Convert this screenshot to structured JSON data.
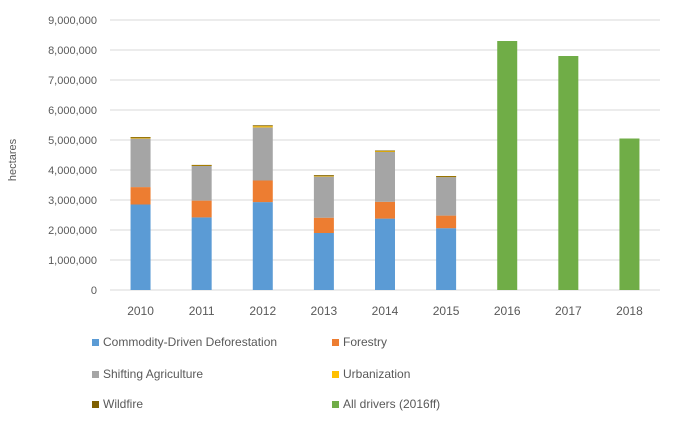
{
  "chart_data": {
    "type": "bar",
    "stacked": true,
    "title": "",
    "xlabel": "",
    "ylabel": "hectares",
    "ylim": [
      0,
      9000000
    ],
    "yticks": [
      "0",
      "1,000,000",
      "2,000,000",
      "3,000,000",
      "4,000,000",
      "5,000,000",
      "6,000,000",
      "7,000,000",
      "8,000,000",
      "9,000,000"
    ],
    "grid": true,
    "legend_position": "bottom",
    "categories": [
      "2010",
      "2011",
      "2012",
      "2013",
      "2014",
      "2015",
      "2016",
      "2017",
      "2018"
    ],
    "series": [
      {
        "name": "Commodity-Driven Deforestation",
        "color": "#5b9bd5",
        "values": [
          2850000,
          2420000,
          2930000,
          1900000,
          2380000,
          2060000,
          0,
          0,
          0
        ]
      },
      {
        "name": "Forestry",
        "color": "#ed7d31",
        "values": [
          580000,
          560000,
          720000,
          510000,
          560000,
          420000,
          0,
          0,
          0
        ]
      },
      {
        "name": "Shifting Agriculture",
        "color": "#a5a5a5",
        "values": [
          1620000,
          1160000,
          1770000,
          1380000,
          1660000,
          1290000,
          0,
          0,
          0
        ]
      },
      {
        "name": "Urbanization",
        "color": "#ffc000",
        "values": [
          30000,
          20000,
          40000,
          20000,
          30000,
          20000,
          0,
          0,
          0
        ]
      },
      {
        "name": "Wildfire",
        "color": "#7f6000",
        "values": [
          20000,
          10000,
          30000,
          20000,
          20000,
          10000,
          0,
          0,
          0
        ]
      },
      {
        "name": "All drivers (2016ff)",
        "color": "#70ad47",
        "values": [
          0,
          0,
          0,
          0,
          0,
          0,
          8300000,
          7800000,
          5050000
        ]
      }
    ]
  }
}
